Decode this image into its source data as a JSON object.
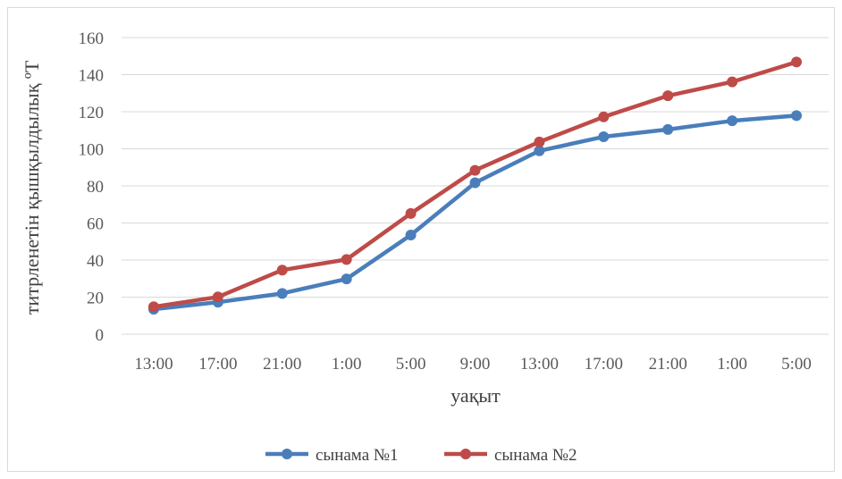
{
  "chart_data": {
    "type": "line",
    "categories": [
      "13:00",
      "17:00",
      "21:00",
      "1:00",
      "5:00",
      "9:00",
      "13:00",
      "17:00",
      "21:00",
      "1:00",
      "5:00"
    ],
    "series": [
      {
        "name": "сынама №1",
        "color": "#4a7ebb",
        "values": [
          13.5,
          17.3,
          22.0,
          29.8,
          53.5,
          81.7,
          98.9,
          106.5,
          110.4,
          115.1,
          117.9
        ]
      },
      {
        "name": "сынама №2",
        "color": "#be4b48",
        "values": [
          14.8,
          20.1,
          34.6,
          40.3,
          65.1,
          88.4,
          103.7,
          117.2,
          128.6,
          136.1,
          146.8
        ]
      }
    ],
    "xlabel": "уақыт",
    "ylabel": "титрленетін қышқылдылық  ºТ",
    "ylim": [
      0,
      160
    ],
    "yticks": [
      0,
      20,
      40,
      60,
      80,
      100,
      120,
      140,
      160
    ],
    "grid": true,
    "legend": "bottom"
  }
}
